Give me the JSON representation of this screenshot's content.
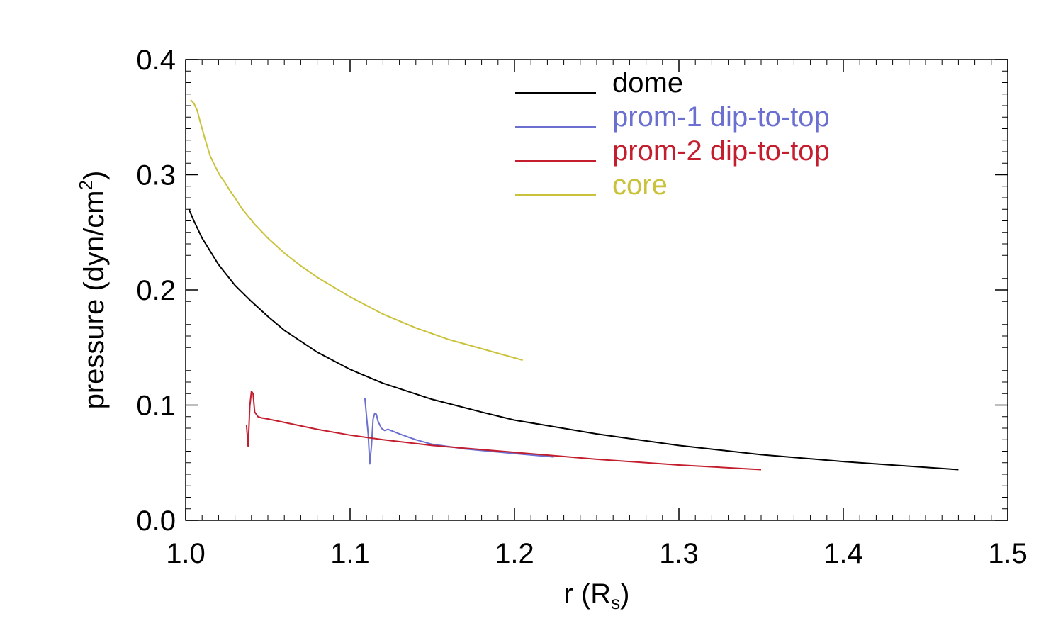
{
  "chart_data": {
    "type": "line",
    "xlabel": "r (R",
    "xlabel_sub": "s",
    "xlabel_close": ")",
    "ylabel": "pressure (dyn/cm",
    "ylabel_sup": "2",
    "ylabel_close": ")",
    "xlim": [
      1.0,
      1.5
    ],
    "ylim": [
      0.0,
      0.4
    ],
    "xticks": [
      {
        "value": 1.0,
        "label": "1.0"
      },
      {
        "value": 1.1,
        "label": "1.1"
      },
      {
        "value": 1.2,
        "label": "1.2"
      },
      {
        "value": 1.3,
        "label": "1.3"
      },
      {
        "value": 1.4,
        "label": "1.4"
      },
      {
        "value": 1.5,
        "label": "1.5"
      }
    ],
    "yticks": [
      {
        "value": 0.0,
        "label": "0.0"
      },
      {
        "value": 0.1,
        "label": "0.1"
      },
      {
        "value": 0.2,
        "label": "0.2"
      },
      {
        "value": 0.3,
        "label": "0.3"
      },
      {
        "value": 0.4,
        "label": "0.4"
      }
    ],
    "x_minor_step": 0.01,
    "y_minor_step": 0.01,
    "legend_position": "top-right",
    "series": [
      {
        "name": "dome",
        "color": "#000000",
        "points": [
          [
            1.002,
            0.27
          ],
          [
            1.005,
            0.26
          ],
          [
            1.01,
            0.245
          ],
          [
            1.02,
            0.222
          ],
          [
            1.03,
            0.204
          ],
          [
            1.04,
            0.19
          ],
          [
            1.05,
            0.177
          ],
          [
            1.06,
            0.165
          ],
          [
            1.08,
            0.146
          ],
          [
            1.1,
            0.131
          ],
          [
            1.12,
            0.119
          ],
          [
            1.15,
            0.105
          ],
          [
            1.18,
            0.094
          ],
          [
            1.2,
            0.087
          ],
          [
            1.25,
            0.075
          ],
          [
            1.3,
            0.065
          ],
          [
            1.35,
            0.057
          ],
          [
            1.4,
            0.051
          ],
          [
            1.45,
            0.046
          ],
          [
            1.47,
            0.044
          ]
        ]
      },
      {
        "name": "prom-1 dip-to-top",
        "color": "#6a6fd0",
        "points": [
          [
            1.109,
            0.106
          ],
          [
            1.111,
            0.075
          ],
          [
            1.112,
            0.049
          ],
          [
            1.113,
            0.065
          ],
          [
            1.114,
            0.088
          ],
          [
            1.115,
            0.093
          ],
          [
            1.116,
            0.092
          ],
          [
            1.117,
            0.086
          ],
          [
            1.119,
            0.08
          ],
          [
            1.121,
            0.078
          ],
          [
            1.123,
            0.079
          ],
          [
            1.13,
            0.075
          ],
          [
            1.14,
            0.07
          ],
          [
            1.15,
            0.066
          ],
          [
            1.17,
            0.062
          ],
          [
            1.2,
            0.058
          ],
          [
            1.224,
            0.055
          ]
        ]
      },
      {
        "name": "prom-2 dip-to-top",
        "color": "#c41e2e",
        "points": [
          [
            1.037,
            0.083
          ],
          [
            1.038,
            0.064
          ],
          [
            1.039,
            0.099
          ],
          [
            1.04,
            0.112
          ],
          [
            1.041,
            0.11
          ],
          [
            1.042,
            0.094
          ],
          [
            1.044,
            0.09
          ],
          [
            1.046,
            0.089
          ],
          [
            1.05,
            0.088
          ],
          [
            1.06,
            0.085
          ],
          [
            1.08,
            0.079
          ],
          [
            1.1,
            0.074
          ],
          [
            1.12,
            0.07
          ],
          [
            1.15,
            0.065
          ],
          [
            1.2,
            0.059
          ],
          [
            1.25,
            0.053
          ],
          [
            1.3,
            0.048
          ],
          [
            1.35,
            0.044
          ]
        ]
      },
      {
        "name": "core",
        "color": "#c9c23a",
        "points": [
          [
            1.003,
            0.365
          ],
          [
            1.005,
            0.362
          ],
          [
            1.007,
            0.356
          ],
          [
            1.009,
            0.345
          ],
          [
            1.012,
            0.33
          ],
          [
            1.015,
            0.316
          ],
          [
            1.018,
            0.307
          ],
          [
            1.021,
            0.299
          ],
          [
            1.024,
            0.293
          ],
          [
            1.027,
            0.286
          ],
          [
            1.03,
            0.28
          ],
          [
            1.034,
            0.271
          ],
          [
            1.038,
            0.264
          ],
          [
            1.042,
            0.257
          ],
          [
            1.046,
            0.251
          ],
          [
            1.05,
            0.245
          ],
          [
            1.06,
            0.232
          ],
          [
            1.07,
            0.221
          ],
          [
            1.08,
            0.211
          ],
          [
            1.1,
            0.194
          ],
          [
            1.12,
            0.179
          ],
          [
            1.14,
            0.167
          ],
          [
            1.16,
            0.157
          ],
          [
            1.18,
            0.149
          ],
          [
            1.205,
            0.139
          ]
        ]
      }
    ]
  }
}
